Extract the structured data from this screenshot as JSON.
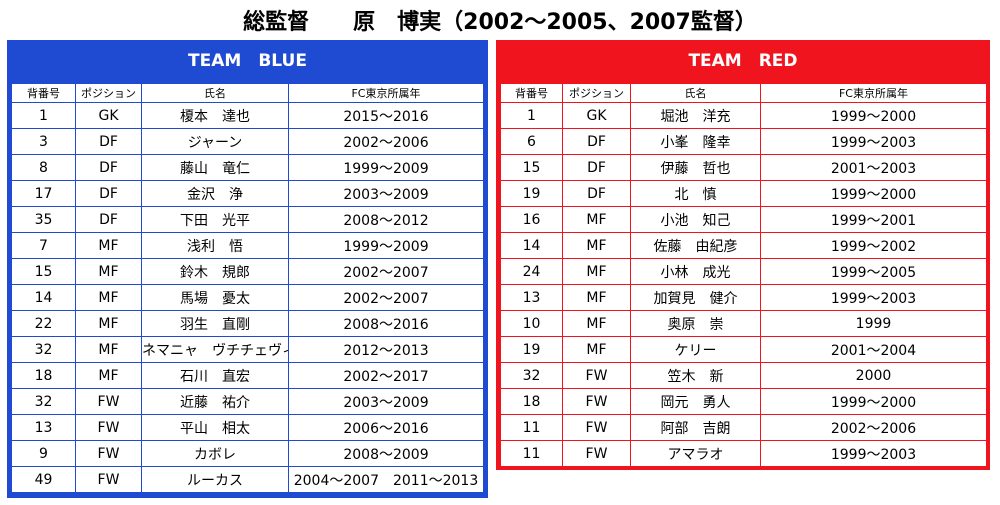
{
  "title": "総監督　　原　博実（2002～2005、2007監督）",
  "teams": [
    {
      "title": "TEAM　BLUE",
      "headers": [
        "背番号",
        "ポジション",
        "氏名",
        "FC東京所属年"
      ],
      "rows": [
        [
          "1",
          "GK",
          "榎本　達也",
          "2015～2016"
        ],
        [
          "3",
          "DF",
          "ジャーン",
          "2002～2006"
        ],
        [
          "8",
          "DF",
          "藤山　竜仁",
          "1999～2009"
        ],
        [
          "17",
          "DF",
          "金沢　浄",
          "2003～2009"
        ],
        [
          "35",
          "DF",
          "下田　光平",
          "2008～2012"
        ],
        [
          "7",
          "MF",
          "浅利　悟",
          "1999～2009"
        ],
        [
          "15",
          "MF",
          "鈴木　規郎",
          "2002～2007"
        ],
        [
          "14",
          "MF",
          "馬場　憂太",
          "2002～2007"
        ],
        [
          "22",
          "MF",
          "羽生　直剛",
          "2008～2016"
        ],
        [
          "32",
          "MF",
          "ネマニャ　ヴチチェヴィッチ",
          "2012～2013"
        ],
        [
          "18",
          "MF",
          "石川　直宏",
          "2002～2017"
        ],
        [
          "32",
          "FW",
          "近藤　祐介",
          "2003～2009"
        ],
        [
          "13",
          "FW",
          "平山　相太",
          "2006～2016"
        ],
        [
          "9",
          "FW",
          "カボレ",
          "2008～2009"
        ],
        [
          "49",
          "FW",
          "ルーカス",
          "2004～2007　2011～2013"
        ]
      ]
    },
    {
      "title": "TEAM　RED",
      "headers": [
        "背番号",
        "ポジション",
        "氏名",
        "FC東京所属年"
      ],
      "rows": [
        [
          "1",
          "GK",
          "堀池　洋充",
          "1999～2000"
        ],
        [
          "6",
          "DF",
          "小峯　隆幸",
          "1999～2003"
        ],
        [
          "15",
          "DF",
          "伊藤　哲也",
          "2001～2003"
        ],
        [
          "19",
          "DF",
          "北　慎",
          "1999～2000"
        ],
        [
          "16",
          "MF",
          "小池　知己",
          "1999～2001"
        ],
        [
          "14",
          "MF",
          "佐藤　由紀彦",
          "1999～2002"
        ],
        [
          "24",
          "MF",
          "小林　成光",
          "1999～2005"
        ],
        [
          "13",
          "MF",
          "加賀見　健介",
          "1999～2003"
        ],
        [
          "10",
          "MF",
          "奥原　崇",
          "1999"
        ],
        [
          "19",
          "MF",
          "ケリー",
          "2001～2004"
        ],
        [
          "32",
          "FW",
          "笠木　新",
          "2000"
        ],
        [
          "18",
          "FW",
          "岡元　勇人",
          "1999～2000"
        ],
        [
          "11",
          "FW",
          "阿部　吉朗",
          "2002～2006"
        ],
        [
          "11",
          "FW",
          "アマラオ",
          "1999～2003"
        ]
      ]
    }
  ]
}
